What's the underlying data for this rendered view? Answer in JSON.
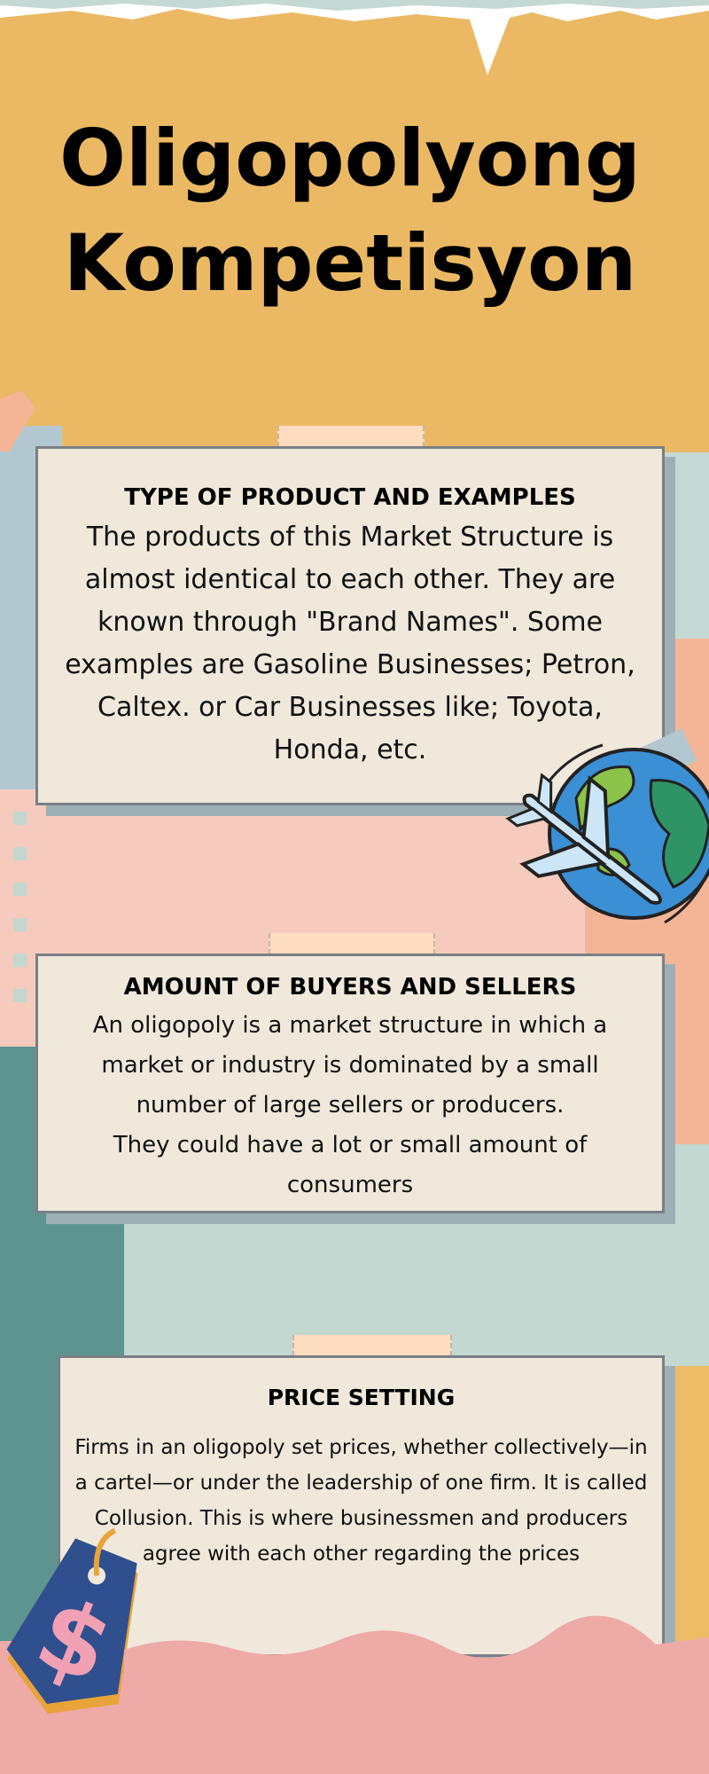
{
  "title": {
    "line1": "Oligopolyong",
    "line2": "Kompetisyon"
  },
  "sections": [
    {
      "heading": "TYPE OF PRODUCT AND EXAMPLES",
      "body": "The products of this Market Structure is almost identical to each other. They are known through \"Brand Names\". Some examples are Gasoline Businesses; Petron, Caltex. or Car Businesses like; Toyota, Honda, etc."
    },
    {
      "heading": "AMOUNT OF BUYERS AND SELLERS",
      "body_line1": "An oligopoly is a market structure in which a market or industry is dominated by a small number of large sellers or producers.",
      "body_line2": "They could have a lot or small amount of consumers"
    },
    {
      "heading": "PRICE SETTING",
      "body": "Firms in an oligopoly set prices, whether collectively—in a cartel—or under the leadership of one firm. It is called Collusion. This is where businessmen and producers agree with each other regarding the prices"
    }
  ],
  "illustrations": {
    "globe": "globe-with-airplane-icon",
    "price_tag": "dollar-price-tag-icon"
  },
  "colors": {
    "header": "#ebb964",
    "card": "#f0e8da",
    "tape": "#fddcbf",
    "teal": "#5e9490",
    "pink": "#eeaaa7"
  }
}
